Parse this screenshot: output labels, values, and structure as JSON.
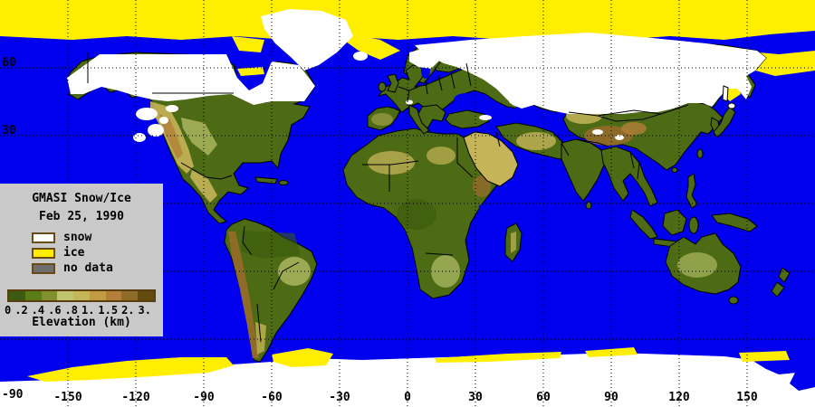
{
  "legend": {
    "title": "GMASI Snow/Ice",
    "date": "Feb 25, 1990",
    "items": [
      {
        "label": "snow",
        "color": "#FFFFFF"
      },
      {
        "label": "ice",
        "color": "#FFEE00"
      },
      {
        "label": "no data",
        "color": "#6E6E6E"
      }
    ],
    "colorbar": {
      "caption": "Elevation (km)",
      "ticks": [
        "0",
        ".2",
        ".4",
        ".6",
        ".8",
        "1.",
        "1.5",
        "2.",
        "3."
      ],
      "colors": [
        "#3D5B0E",
        "#5A7D18",
        "#82902F",
        "#BFC46E",
        "#C6B458",
        "#C19B40",
        "#B37F38",
        "#8F6B28",
        "#64490F"
      ]
    }
  },
  "axes": {
    "lon_ticks": [
      {
        "label": "-150",
        "deg": -150
      },
      {
        "label": "-120",
        "deg": -120
      },
      {
        "label": "-90",
        "deg": -90
      },
      {
        "label": "-60",
        "deg": -60
      },
      {
        "label": "-30",
        "deg": -30
      },
      {
        "label": "0",
        "deg": 0
      },
      {
        "label": "30",
        "deg": 30
      },
      {
        "label": "60",
        "deg": 60
      },
      {
        "label": "90",
        "deg": 90
      },
      {
        "label": "120",
        "deg": 120
      },
      {
        "label": "150",
        "deg": 150
      }
    ],
    "lat_ticks": [
      {
        "label": "60",
        "deg": 60
      },
      {
        "label": "30",
        "deg": 30
      },
      {
        "label": "-90",
        "deg": -90
      }
    ],
    "lon_gridlines_deg": [
      -150,
      -120,
      -90,
      -60,
      -30,
      0,
      30,
      60,
      90,
      120,
      150
    ],
    "lat_gridlines_deg": [
      60,
      30,
      0,
      -30,
      -60
    ]
  },
  "colors": {
    "ocean": "#0000EE",
    "ice": "#FFEE00",
    "snow": "#FFFFFF",
    "no_data": "#6E6E6E",
    "legend_bg": "#C9C9C9",
    "swatch_border": "#6B4A14",
    "bar_border": "#5A3E10",
    "land_low": "#4C6B14",
    "land_dark": "#3A5A0C",
    "land_pale": "#BFC46E",
    "land_tan": "#C6B458",
    "land_orange": "#B37F38",
    "land_brown": "#8F6B28",
    "grid": "#000000",
    "coast": "#000000"
  }
}
